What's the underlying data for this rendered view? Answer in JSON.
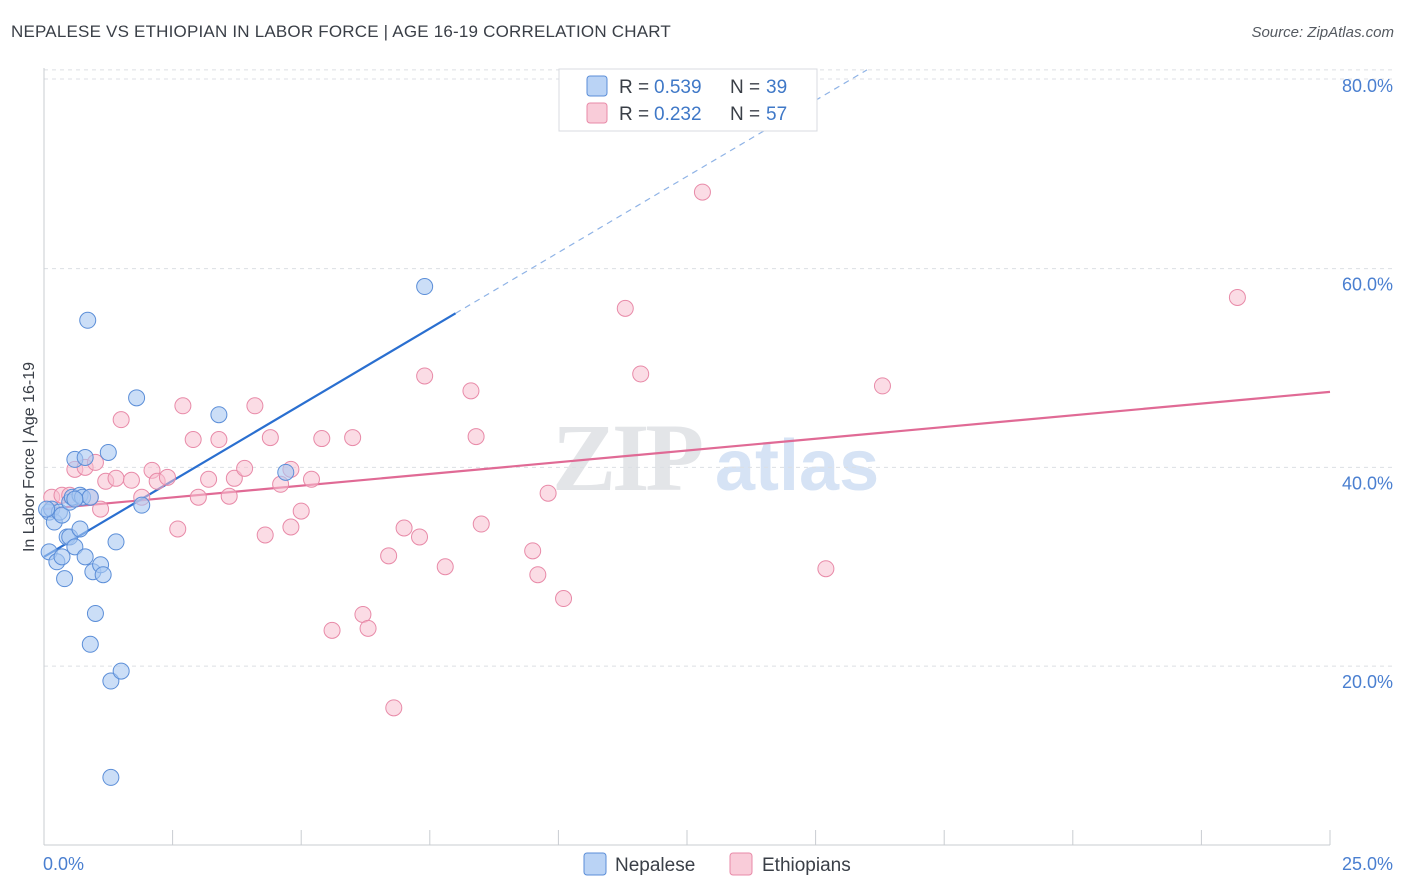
{
  "title": "NEPALESE VS ETHIOPIAN IN LABOR FORCE | AGE 16-19 CORRELATION CHART",
  "source": "Source: ZipAtlas.com",
  "colors": {
    "nepalese_fill": "#a9c8f2",
    "nepalese_stroke": "#5b8ed8",
    "nepalese_line": "#2a6fd0",
    "ethiopian_fill": "#f7bfd0",
    "ethiopian_stroke": "#e88aa8",
    "ethiopian_line": "#e06a95",
    "grid": "#dcdfe4",
    "axis_label": "#4a7fd0"
  },
  "legend": {
    "r_label": "R =",
    "n_label": "N =",
    "rows": [
      {
        "series": "Nepalese",
        "r": "0.539",
        "n": "39"
      },
      {
        "series": "Ethiopians",
        "r": "0.232",
        "n": "57"
      }
    ]
  },
  "watermark": {
    "zip": "ZIP",
    "atlas": "atlas"
  },
  "chart_data": {
    "type": "scatter",
    "title": "NEPALESE VS ETHIOPIAN IN LABOR FORCE | AGE 16-19 CORRELATION CHART",
    "xlabel": "",
    "ylabel": "In Labor Force | Age 16-19",
    "xlim": [
      0,
      25
    ],
    "ylim": [
      2,
      82
    ],
    "x_tick_labels": [
      "0.0%",
      "25.0%"
    ],
    "y_ticks": [
      20,
      40,
      60,
      80
    ],
    "y_tick_labels": [
      "20.0%",
      "40.0%",
      "60.0%",
      "80.0%"
    ],
    "grid": true,
    "series": [
      {
        "name": "Nepalese",
        "points": [
          [
            0.1,
            35.5
          ],
          [
            0.1,
            31.5
          ],
          [
            0.15,
            35.8
          ],
          [
            0.2,
            34.5
          ],
          [
            0.25,
            30.5
          ],
          [
            0.3,
            35.5
          ],
          [
            0.35,
            35.2
          ],
          [
            0.35,
            31.0
          ],
          [
            0.4,
            28.8
          ],
          [
            0.45,
            33.0
          ],
          [
            0.5,
            33.0
          ],
          [
            0.5,
            36.5
          ],
          [
            0.55,
            37.0
          ],
          [
            0.6,
            40.8
          ],
          [
            0.6,
            32.0
          ],
          [
            0.7,
            37.2
          ],
          [
            0.7,
            33.8
          ],
          [
            0.75,
            37.0
          ],
          [
            0.8,
            41.0
          ],
          [
            0.8,
            31.0
          ],
          [
            0.85,
            54.8
          ],
          [
            0.9,
            22.2
          ],
          [
            0.9,
            37.0
          ],
          [
            0.95,
            29.5
          ],
          [
            1.0,
            25.3
          ],
          [
            1.1,
            30.2
          ],
          [
            1.15,
            29.2
          ],
          [
            1.25,
            41.5
          ],
          [
            1.3,
            18.5
          ],
          [
            1.3,
            8.8
          ],
          [
            1.4,
            32.5
          ],
          [
            1.5,
            19.5
          ],
          [
            1.8,
            47.0
          ],
          [
            1.9,
            36.2
          ],
          [
            3.4,
            45.3
          ],
          [
            4.7,
            39.5
          ],
          [
            7.4,
            58.2
          ],
          [
            0.05,
            35.8
          ],
          [
            0.6,
            36.8
          ]
        ],
        "trend": {
          "x": [
            0,
            8.0
          ],
          "y": [
            31.0,
            55.5
          ]
        },
        "trend_extension": {
          "x": [
            8.0,
            16.0
          ],
          "y": [
            55.5,
            80.0
          ]
        }
      },
      {
        "name": "Ethiopians",
        "points": [
          [
            0.15,
            37.0
          ],
          [
            0.35,
            37.2
          ],
          [
            0.5,
            37.2
          ],
          [
            0.6,
            39.8
          ],
          [
            0.8,
            40.0
          ],
          [
            0.9,
            37.0
          ],
          [
            1.0,
            40.5
          ],
          [
            1.1,
            35.8
          ],
          [
            1.2,
            38.6
          ],
          [
            1.4,
            38.9
          ],
          [
            1.5,
            44.8
          ],
          [
            1.7,
            38.7
          ],
          [
            1.9,
            37.0
          ],
          [
            2.1,
            39.7
          ],
          [
            2.2,
            38.6
          ],
          [
            2.4,
            39.0
          ],
          [
            2.6,
            33.8
          ],
          [
            2.7,
            46.2
          ],
          [
            2.9,
            42.8
          ],
          [
            3.0,
            37.0
          ],
          [
            3.2,
            38.8
          ],
          [
            3.4,
            42.8
          ],
          [
            3.6,
            37.1
          ],
          [
            3.7,
            38.9
          ],
          [
            3.9,
            39.9
          ],
          [
            4.1,
            46.2
          ],
          [
            4.3,
            33.2
          ],
          [
            4.4,
            43.0
          ],
          [
            4.6,
            38.3
          ],
          [
            4.8,
            39.8
          ],
          [
            4.8,
            34.0
          ],
          [
            5.0,
            35.6
          ],
          [
            5.2,
            38.8
          ],
          [
            5.4,
            42.9
          ],
          [
            5.6,
            23.6
          ],
          [
            6.0,
            43.0
          ],
          [
            6.2,
            25.2
          ],
          [
            6.3,
            23.8
          ],
          [
            6.7,
            31.1
          ],
          [
            6.8,
            15.8
          ],
          [
            7.0,
            33.9
          ],
          [
            7.3,
            33.0
          ],
          [
            7.4,
            49.2
          ],
          [
            7.8,
            30.0
          ],
          [
            8.3,
            47.7
          ],
          [
            8.4,
            43.1
          ],
          [
            8.5,
            34.3
          ],
          [
            9.5,
            31.6
          ],
          [
            9.6,
            29.2
          ],
          [
            9.8,
            37.4
          ],
          [
            10.1,
            26.8
          ],
          [
            11.3,
            56.0
          ],
          [
            11.6,
            49.4
          ],
          [
            12.8,
            67.7
          ],
          [
            15.2,
            29.8
          ],
          [
            16.3,
            48.2
          ],
          [
            23.2,
            57.1
          ]
        ],
        "trend": {
          "x": [
            0,
            25
          ],
          "y": [
            35.8,
            47.6
          ]
        }
      }
    ]
  }
}
